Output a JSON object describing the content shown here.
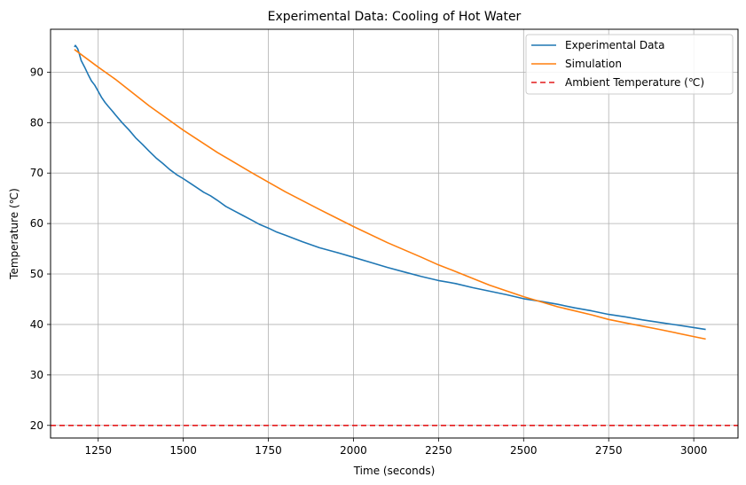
{
  "chart_data": {
    "type": "line",
    "title": "Experimental Data: Cooling of Hot Water",
    "xlabel": "Time (seconds)",
    "ylabel": "Temperature (℃)",
    "xlim": [
      1110,
      3130
    ],
    "ylim": [
      17.5,
      98.5
    ],
    "xticks": [
      1250,
      1500,
      1750,
      2000,
      2250,
      2500,
      2750,
      3000
    ],
    "yticks": [
      20,
      30,
      40,
      50,
      60,
      70,
      80,
      90
    ],
    "grid": true,
    "legend_position": "top-right",
    "series": [
      {
        "name": "Experimental Data",
        "color": "#1f77b4",
        "style": "solid",
        "x": [
          1180,
          1183,
          1186,
          1190,
          1195,
          1200,
          1210,
          1220,
          1230,
          1240,
          1250,
          1260,
          1270,
          1280,
          1290,
          1300,
          1320,
          1340,
          1360,
          1380,
          1400,
          1420,
          1440,
          1460,
          1480,
          1500,
          1520,
          1540,
          1560,
          1580,
          1600,
          1625,
          1650,
          1675,
          1700,
          1725,
          1750,
          1775,
          1800,
          1850,
          1900,
          1950,
          2000,
          2050,
          2100,
          2150,
          2200,
          2250,
          2300,
          2350,
          2400,
          2450,
          2500,
          2550,
          2600,
          2650,
          2700,
          2750,
          2800,
          2850,
          2900,
          2950,
          3000,
          3035
        ],
        "y": [
          95.0,
          95.3,
          95.0,
          94.6,
          93.5,
          92.3,
          91.0,
          89.6,
          88.3,
          87.4,
          86.2,
          85.0,
          84.0,
          83.2,
          82.4,
          81.6,
          80.0,
          78.6,
          77.0,
          75.7,
          74.3,
          73.0,
          71.9,
          70.7,
          69.7,
          68.9,
          68.0,
          67.1,
          66.2,
          65.5,
          64.6,
          63.4,
          62.5,
          61.6,
          60.7,
          59.8,
          59.1,
          58.3,
          57.7,
          56.4,
          55.2,
          54.3,
          53.3,
          52.3,
          51.3,
          50.4,
          49.5,
          48.7,
          48.1,
          47.3,
          46.6,
          45.9,
          45.1,
          44.6,
          44.0,
          43.3,
          42.7,
          42.0,
          41.5,
          40.9,
          40.4,
          39.9,
          39.4,
          39.0
        ]
      },
      {
        "name": "Simulation",
        "color": "#ff7f0e",
        "style": "solid",
        "x": [
          1180,
          1250,
          1300,
          1400,
          1500,
          1600,
          1700,
          1750,
          1800,
          1900,
          2000,
          2100,
          2200,
          2250,
          2300,
          2400,
          2500,
          2600,
          2700,
          2750,
          2800,
          2900,
          3000,
          3035
        ],
        "y": [
          94.5,
          91.0,
          88.6,
          83.3,
          78.5,
          74.1,
          70.1,
          68.2,
          66.3,
          62.8,
          59.4,
          56.2,
          53.3,
          51.8,
          50.5,
          47.8,
          45.5,
          43.5,
          41.9,
          41.0,
          40.3,
          39.0,
          37.6,
          37.1
        ]
      },
      {
        "name": "Ambient Temperature (℃)",
        "color": "#e41a1c",
        "style": "dashed",
        "horizontal": true,
        "y_value": 20
      }
    ]
  }
}
